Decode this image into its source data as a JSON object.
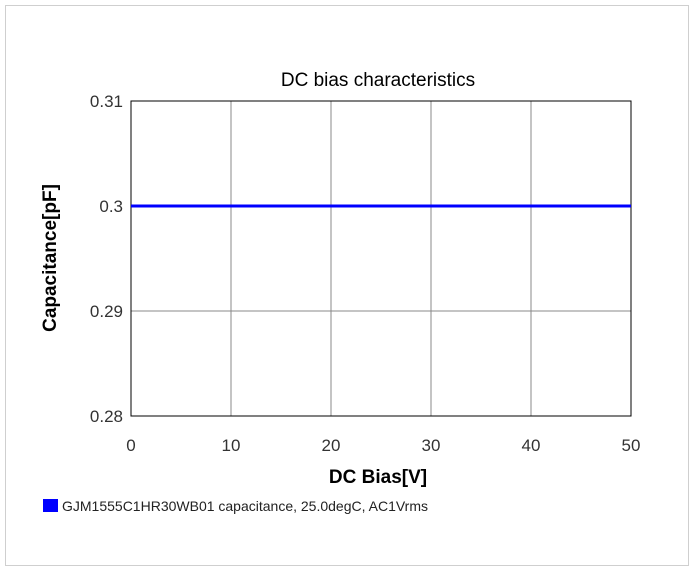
{
  "chart_data": {
    "type": "line",
    "title": "DC bias characteristics",
    "xlabel": "DC Bias[V]",
    "ylabel": "Capacitance[pF]",
    "xlim": [
      0,
      50
    ],
    "ylim": [
      0.28,
      0.31
    ],
    "xticks": [
      0,
      10,
      20,
      30,
      40,
      50
    ],
    "xtick_labels": [
      "0",
      "10",
      "20",
      "30",
      "40",
      "50"
    ],
    "yticks": [
      0.28,
      0.29,
      0.3,
      0.31
    ],
    "ytick_labels": [
      "0.28",
      "0.29",
      "0.3",
      "0.31"
    ],
    "grid": true,
    "legend_position": "bottom-left",
    "series": [
      {
        "name": "GJM1555C1HR30WB01 capacitance, 25.0degC, AC1Vrms",
        "color": "#0000ff",
        "x": [
          0,
          5,
          10,
          15,
          20,
          25,
          30,
          35,
          40,
          45,
          50
        ],
        "y": [
          0.3,
          0.3,
          0.3,
          0.3,
          0.3,
          0.3,
          0.3,
          0.3,
          0.3,
          0.3,
          0.3
        ]
      }
    ]
  }
}
